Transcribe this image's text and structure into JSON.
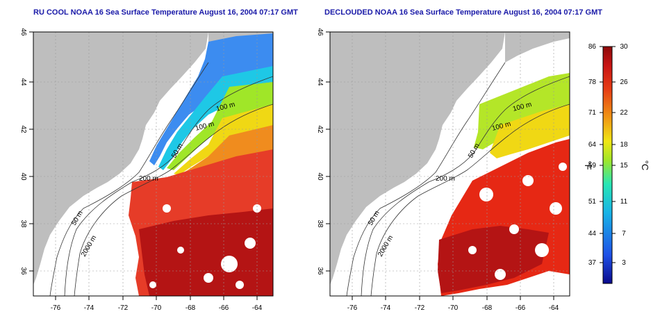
{
  "left_panel": {
    "title": "RU COOL NOAA 16 Sea Surface Temperature August 16, 2004 07:17 GMT",
    "x_ticks": [
      "-76",
      "-74",
      "-72",
      "-70",
      "-68",
      "-66",
      "-64"
    ],
    "y_ticks": [
      "36",
      "38",
      "40",
      "42",
      "44",
      "46"
    ],
    "contour_labels": [
      "100 m",
      "100 m",
      "50 m",
      "200 m",
      "50 m",
      "2000 m"
    ]
  },
  "right_panel": {
    "title": "DECLOUDED NOAA 16 Sea Surface Temperature August 16, 2004 07:17 GMT",
    "x_ticks": [
      "-76",
      "-74",
      "-72",
      "-70",
      "-68",
      "-66",
      "-64"
    ],
    "y_ticks": [
      "36",
      "38",
      "40",
      "42",
      "44",
      "46"
    ],
    "contour_labels": [
      "100 m",
      "100 m",
      "50 m",
      "200 m",
      "50 m",
      "2000 m"
    ]
  },
  "colorbar": {
    "f_unit": "°F",
    "c_unit": "°C",
    "f_ticks": [
      "86",
      "78",
      "71",
      "64",
      "59",
      "51",
      "44",
      "37"
    ],
    "c_ticks": [
      "30",
      "26",
      "22",
      "18",
      "15",
      "11",
      "7",
      "3"
    ],
    "colors": [
      "#0a0a8c",
      "#1e50e6",
      "#18b4e6",
      "#28e6b4",
      "#a0e628",
      "#f0e614",
      "#f09614",
      "#e63c14",
      "#c81414",
      "#8c0a0a"
    ]
  },
  "colors": {
    "land": "#bebebe",
    "no_data": "#ffffff",
    "title": "#1a1aa8"
  }
}
